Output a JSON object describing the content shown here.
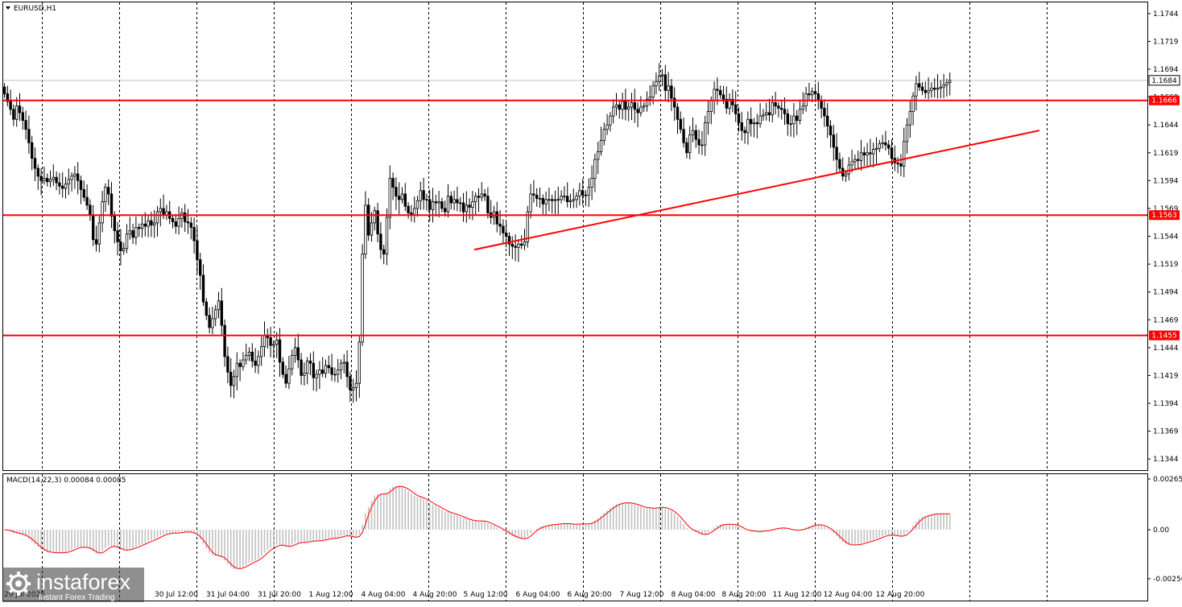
{
  "window": {
    "title": "EURUSD,H1",
    "menu_icon": "triangle-down-icon"
  },
  "colors": {
    "background": "#ffffff",
    "candle": "#000000",
    "grid": "#000000",
    "level_line": "#ff0000",
    "trendline": "#ff0000",
    "price_line": "#c0c0c0",
    "macd_hist": "#c0c0c0",
    "macd_signal": "#ff0000",
    "tag_red": "#ff0000",
    "tag_current": "#ffffff"
  },
  "chart_data": {
    "type": "candlestick",
    "symbol": "EURUSD",
    "timeframe": "H1",
    "ylim": [
      1.1334,
      1.1754
    ],
    "y_ticks": [
      "1.1744",
      "1.1719",
      "1.1694",
      "1.1669",
      "1.1644",
      "1.1619",
      "1.1594",
      "1.1569",
      "1.1544",
      "1.1519",
      "1.1494",
      "1.1469",
      "1.1444",
      "1.1419",
      "1.1394",
      "1.1369",
      "1.1344"
    ],
    "x_ticks": [
      "30 Jul 12:00",
      "31 Jul 04:00",
      "31 Jul 20:00",
      "1 Aug 12:00",
      "4 Aug 04:00",
      "4 Aug 20:00",
      "5 Aug 12:00",
      "6 Aug 04:00",
      "6 Aug 20:00",
      "7 Aug 12:00",
      "8 Aug 04:00",
      "8 Aug 20:00",
      "11 Aug 12:00",
      "12 Aug 04:00",
      "12 Aug 20:00"
    ],
    "first_x_tick_partial": "29 Jul 2025",
    "current_price": "1.1684",
    "levels": [
      {
        "value": 1.1666,
        "label": "1.1666"
      },
      {
        "value": 1.1563,
        "label": "1.1563"
      },
      {
        "value": 1.1455,
        "label": "1.1455"
      }
    ],
    "trendline": {
      "from_time": "5 Aug 12:00",
      "from_price": 1.1532,
      "to_time": "14 Aug 00:00",
      "to_price": 1.1639
    },
    "closes": [
      1.1672,
      1.1665,
      1.1658,
      1.1649,
      1.1661,
      1.1655,
      1.1648,
      1.164,
      1.1628,
      1.1614,
      1.1605,
      1.1598,
      1.1594,
      1.1596,
      1.1593,
      1.1595,
      1.1597,
      1.1592,
      1.1589,
      1.1587,
      1.1591,
      1.1595,
      1.1598,
      1.16,
      1.1594,
      1.1586,
      1.1579,
      1.1572,
      1.1563,
      1.1541,
      1.1537,
      1.1556,
      1.1575,
      1.1588,
      1.1582,
      1.1562,
      1.1549,
      1.1539,
      1.1531,
      1.1533,
      1.1546,
      1.1549,
      1.1543,
      1.1552,
      1.1551,
      1.1555,
      1.1553,
      1.1558,
      1.1554,
      1.1556,
      1.1566,
      1.1569,
      1.1563,
      1.1566,
      1.156,
      1.1557,
      1.1553,
      1.156,
      1.1565,
      1.1557,
      1.1556,
      1.1552,
      1.154,
      1.1523,
      1.1509,
      1.1485,
      1.1473,
      1.1462,
      1.147,
      1.1478,
      1.1486,
      1.1464,
      1.1436,
      1.1422,
      1.141,
      1.1418,
      1.143,
      1.1427,
      1.1433,
      1.1437,
      1.144,
      1.1432,
      1.1428,
      1.1436,
      1.1445,
      1.1455,
      1.1453,
      1.1446,
      1.1447,
      1.1451,
      1.1431,
      1.142,
      1.1412,
      1.1425,
      1.1437,
      1.1444,
      1.1433,
      1.1419,
      1.1421,
      1.1432,
      1.143,
      1.1417,
      1.142,
      1.1424,
      1.1421,
      1.1428,
      1.1426,
      1.142,
      1.142,
      1.1424,
      1.143,
      1.1431,
      1.1418,
      1.1406,
      1.1408,
      1.1412,
      1.1449,
      1.1528,
      1.1572,
      1.1545,
      1.1556,
      1.1567,
      1.1546,
      1.1532,
      1.1528,
      1.1561,
      1.1596,
      1.1588,
      1.158,
      1.1577,
      1.1582,
      1.1571,
      1.1565,
      1.1563,
      1.1569,
      1.1576,
      1.1585,
      1.1577,
      1.1577,
      1.1568,
      1.1575,
      1.1574,
      1.1575,
      1.1569,
      1.1566,
      1.158,
      1.1574,
      1.1577,
      1.1574,
      1.1574,
      1.1566,
      1.1572,
      1.157,
      1.1575,
      1.158,
      1.1579,
      1.1582,
      1.158,
      1.1565,
      1.1561,
      1.1566,
      1.1555,
      1.1553,
      1.1547,
      1.1544,
      1.1537,
      1.1535,
      1.1534,
      1.1537,
      1.1536,
      1.1539,
      1.1566,
      1.1582,
      1.1581,
      1.1578,
      1.1578,
      1.1573,
      1.1577,
      1.1577,
      1.1576,
      1.1577,
      1.1577,
      1.158,
      1.158,
      1.1575,
      1.1576,
      1.1577,
      1.158,
      1.1585,
      1.1581,
      1.1581,
      1.1588,
      1.1596,
      1.1613,
      1.162,
      1.163,
      1.164,
      1.1644,
      1.1652,
      1.166,
      1.1662,
      1.1658,
      1.1665,
      1.1658,
      1.166,
      1.1664,
      1.1658,
      1.1655,
      1.166,
      1.1661,
      1.1667,
      1.1669,
      1.1679,
      1.1683,
      1.1688,
      1.1689,
      1.1675,
      1.1679,
      1.1668,
      1.166,
      1.1649,
      1.164,
      1.1628,
      1.1619,
      1.1635,
      1.1639,
      1.1631,
      1.1626,
      1.1626,
      1.1646,
      1.1656,
      1.1666,
      1.1676,
      1.1675,
      1.1671,
      1.1667,
      1.1659,
      1.1667,
      1.1662,
      1.1654,
      1.1646,
      1.1639,
      1.1637,
      1.1649,
      1.1645,
      1.1646,
      1.1645,
      1.1652,
      1.1653,
      1.1655,
      1.1653,
      1.1664,
      1.1661,
      1.1659,
      1.1658,
      1.1654,
      1.1645,
      1.1645,
      1.1652,
      1.1648,
      1.1658,
      1.1661,
      1.1672,
      1.1671,
      1.1674,
      1.1672,
      1.1666,
      1.1659,
      1.1652,
      1.1643,
      1.1635,
      1.1624,
      1.1613,
      1.1605,
      1.1598,
      1.16,
      1.1608,
      1.1611,
      1.1613,
      1.1612,
      1.1619,
      1.1617,
      1.1619,
      1.1618,
      1.1622,
      1.1623,
      1.1627,
      1.1628,
      1.1626,
      1.1623,
      1.1614,
      1.161,
      1.1609,
      1.1607,
      1.1629,
      1.1644,
      1.1656,
      1.167,
      1.1681,
      1.1678,
      1.1675,
      1.1673,
      1.1675,
      1.1677,
      1.1676,
      1.1677,
      1.1678,
      1.168,
      1.1682,
      1.1684
    ],
    "macd": {
      "title": "MACD(14,22,3) 0.00084 0.00085",
      "ylim": [
        -0.00265,
        0.00265
      ],
      "y_ticks": [
        "0.00265",
        "0.00",
        "-0.00256"
      ]
    }
  },
  "watermark": {
    "brand": "instaforex",
    "tagline": "Instant Forex Trading",
    "logo_icon": "instaforex-logo-icon"
  }
}
